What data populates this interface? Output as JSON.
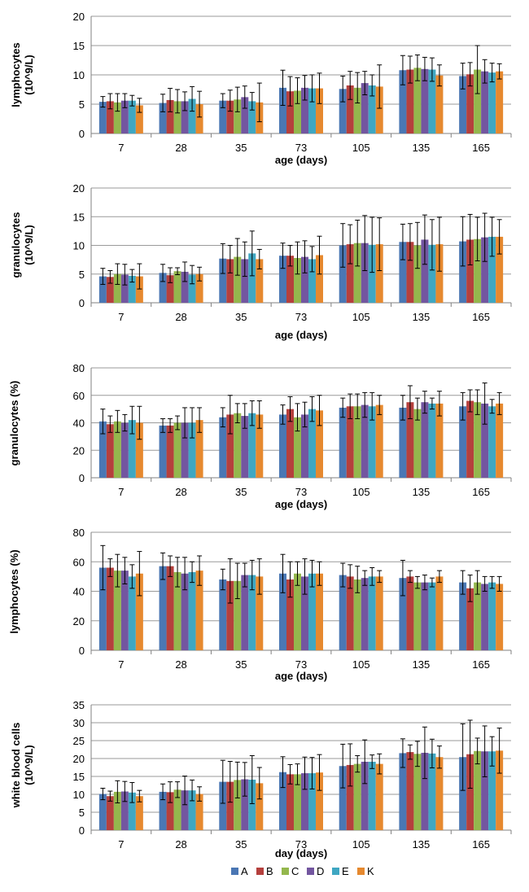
{
  "colors": {
    "A": "#4a77b4",
    "B": "#b5403d",
    "C": "#94b74d",
    "D": "#7356a0",
    "E": "#3fa7c2",
    "K": "#e6892f",
    "grid": "#9a9a9a",
    "axis": "#808080"
  },
  "legend": [
    "A",
    "B",
    "C",
    "D",
    "E",
    "K"
  ],
  "chart_data": [
    {
      "type": "bar",
      "ylabel": "lymphocytes (10^9/L)",
      "ylabel_lines": [
        "lymphocytes",
        "(10^9/L)"
      ],
      "xlabel": "age (days)",
      "ylim": [
        0,
        20
      ],
      "yticks": [
        0,
        5,
        10,
        15,
        20
      ],
      "categories": [
        "7",
        "28",
        "35",
        "73",
        "105",
        "135",
        "165"
      ],
      "series": [
        {
          "name": "A",
          "values": [
            5.4,
            5.2,
            5.6,
            7.8,
            7.6,
            10.8,
            9.8
          ],
          "errors": [
            0.9,
            1.5,
            1.2,
            3.0,
            2.2,
            2.5,
            2.2
          ]
        },
        {
          "name": "B",
          "values": [
            5.5,
            5.7,
            5.6,
            7.2,
            8.2,
            10.9,
            10.1
          ],
          "errors": [
            1.3,
            2.0,
            1.8,
            2.5,
            2.4,
            2.3,
            2.0
          ]
        },
        {
          "name": "C",
          "values": [
            5.3,
            5.5,
            5.8,
            7.3,
            7.8,
            11.2,
            10.9
          ],
          "errors": [
            1.5,
            2.0,
            2.1,
            2.2,
            2.6,
            2.2,
            4.1
          ]
        },
        {
          "name": "D",
          "values": [
            5.6,
            5.5,
            6.2,
            7.8,
            8.6,
            11.0,
            10.6
          ],
          "errors": [
            1.2,
            1.6,
            1.9,
            2.1,
            2.0,
            2.0,
            2.0
          ]
        },
        {
          "name": "E",
          "values": [
            5.6,
            5.9,
            5.5,
            7.7,
            8.2,
            10.9,
            10.4
          ],
          "errors": [
            0.9,
            2.1,
            1.5,
            2.3,
            1.8,
            2.0,
            1.6
          ]
        },
        {
          "name": "K",
          "values": [
            4.8,
            5.0,
            5.3,
            7.7,
            8.0,
            9.9,
            10.6
          ],
          "errors": [
            1.2,
            2.2,
            3.3,
            2.6,
            3.7,
            1.8,
            1.3
          ]
        }
      ]
    },
    {
      "type": "bar",
      "ylabel": "granulocytes (10^9/L)",
      "ylabel_lines": [
        "granulocytes",
        "(10^9/L)"
      ],
      "xlabel": "age (days)",
      "ylim": [
        0,
        20
      ],
      "yticks": [
        0,
        5,
        10,
        15,
        20
      ],
      "categories": [
        "7",
        "28",
        "35",
        "73",
        "105",
        "135",
        "165"
      ],
      "series": [
        {
          "name": "A",
          "values": [
            4.6,
            5.2,
            7.7,
            8.2,
            10.0,
            10.6,
            10.7
          ],
          "errors": [
            1.4,
            1.5,
            2.6,
            2.2,
            3.8,
            3.1,
            4.3
          ]
        },
        {
          "name": "B",
          "values": [
            4.5,
            4.8,
            7.6,
            8.2,
            10.2,
            10.6,
            11.0
          ],
          "errors": [
            1.1,
            1.3,
            2.4,
            1.8,
            3.4,
            3.2,
            4.4
          ]
        },
        {
          "name": "C",
          "values": [
            5.0,
            5.5,
            8.0,
            7.8,
            10.4,
            10.0,
            11.1
          ],
          "errors": [
            1.8,
            0.6,
            3.2,
            2.8,
            4.0,
            4.0,
            3.8
          ]
        },
        {
          "name": "D",
          "values": [
            4.9,
            5.4,
            7.6,
            8.0,
            10.4,
            11.0,
            11.4
          ],
          "errors": [
            1.8,
            1.7,
            3.0,
            2.8,
            4.8,
            4.3,
            4.2
          ]
        },
        {
          "name": "E",
          "values": [
            4.7,
            4.9,
            8.6,
            7.6,
            10.1,
            10.1,
            11.5
          ],
          "errors": [
            1.1,
            1.6,
            3.9,
            2.2,
            4.8,
            4.4,
            3.4
          ]
        },
        {
          "name": "K",
          "values": [
            4.6,
            5.0,
            7.6,
            8.3,
            10.2,
            10.2,
            11.5
          ],
          "errors": [
            2.2,
            1.2,
            1.7,
            3.3,
            4.6,
            4.7,
            3.0
          ]
        }
      ]
    },
    {
      "type": "bar",
      "ylabel": "granulocytes (%)",
      "ylabel_lines": [
        "granulocytes (%)"
      ],
      "xlabel": "age (days)",
      "ylim": [
        0,
        80
      ],
      "yticks": [
        0,
        20,
        40,
        60,
        80
      ],
      "categories": [
        "7",
        "28",
        "35",
        "73",
        "105",
        "135",
        "165"
      ],
      "series": [
        {
          "name": "A",
          "values": [
            41,
            38,
            44,
            46,
            51,
            51,
            52
          ],
          "errors": [
            9,
            5,
            7,
            7,
            7,
            9,
            10
          ]
        },
        {
          "name": "B",
          "values": [
            39,
            38,
            46,
            50,
            52,
            55,
            56
          ],
          "errors": [
            6,
            5,
            14,
            9,
            9,
            12,
            8
          ]
        },
        {
          "name": "C",
          "values": [
            41,
            40,
            47,
            44,
            52,
            50,
            55
          ],
          "errors": [
            8,
            5,
            7,
            10,
            9,
            8,
            9
          ]
        },
        {
          "name": "D",
          "values": [
            40,
            40,
            45,
            46,
            53,
            55,
            54
          ],
          "errors": [
            6,
            11,
            9,
            9,
            9,
            8,
            15
          ]
        },
        {
          "name": "E",
          "values": [
            42,
            40,
            47,
            50,
            52,
            54,
            52
          ],
          "errors": [
            10,
            11,
            9,
            9,
            10,
            4,
            5
          ]
        },
        {
          "name": "K",
          "values": [
            40,
            42,
            46,
            49,
            53,
            54,
            54
          ],
          "errors": [
            12,
            9,
            10,
            11,
            7,
            9,
            8
          ]
        }
      ]
    },
    {
      "type": "bar",
      "ylabel": "lymphocytes (%)",
      "ylabel_lines": [
        "lymphocytes (%)"
      ],
      "xlabel": "age (days)",
      "ylim": [
        0,
        80
      ],
      "yticks": [
        0,
        20,
        40,
        60,
        80
      ],
      "categories": [
        "7",
        "28",
        "35",
        "73",
        "105",
        "135",
        "165"
      ],
      "series": [
        {
          "name": "A",
          "values": [
            56,
            57,
            48,
            52,
            51,
            49,
            46
          ],
          "errors": [
            15,
            9,
            7,
            13,
            8,
            12,
            8
          ]
        },
        {
          "name": "B",
          "values": [
            56,
            57,
            47,
            48,
            50,
            50,
            42
          ],
          "errors": [
            6,
            7,
            15,
            12,
            8,
            4,
            9
          ]
        },
        {
          "name": "C",
          "values": [
            54,
            53,
            47,
            52,
            48,
            46,
            46
          ],
          "errors": [
            11,
            10,
            12,
            8,
            9,
            4,
            8
          ]
        },
        {
          "name": "D",
          "values": [
            54,
            52,
            51,
            50,
            49,
            46,
            45
          ],
          "errors": [
            9,
            11,
            8,
            12,
            5,
            5,
            5
          ]
        },
        {
          "name": "E",
          "values": [
            50,
            53,
            51,
            52,
            50,
            46,
            46
          ],
          "errors": [
            8,
            7,
            10,
            9,
            6,
            3,
            4
          ]
        },
        {
          "name": "K",
          "values": [
            52,
            54,
            50,
            52,
            50,
            50,
            45
          ],
          "errors": [
            15,
            10,
            12,
            8,
            4,
            4,
            5
          ]
        }
      ]
    },
    {
      "type": "bar",
      "ylabel": "white blood cells (10^9/L)",
      "ylabel_lines": [
        "white blood cells",
        "(10^9/L)"
      ],
      "xlabel": "day (days)",
      "ylim": [
        0,
        35
      ],
      "yticks": [
        0,
        5,
        10,
        15,
        20,
        25,
        30,
        35
      ],
      "categories": [
        "7",
        "28",
        "35",
        "73",
        "105",
        "135",
        "165"
      ],
      "series": [
        {
          "name": "A",
          "values": [
            10.1,
            10.7,
            13.5,
            16.2,
            17.9,
            21.5,
            20.4
          ],
          "errors": [
            1.6,
            2.2,
            6.0,
            4.3,
            6.1,
            4.0,
            9.3
          ]
        },
        {
          "name": "B",
          "values": [
            9.5,
            10.6,
            13.5,
            15.6,
            18.2,
            21.8,
            21.2
          ],
          "errors": [
            1.4,
            2.9,
            5.7,
            2.7,
            5.9,
            2.0,
            9.5
          ]
        },
        {
          "name": "C",
          "values": [
            10.7,
            11.3,
            14.0,
            15.6,
            18.5,
            21.3,
            22.1
          ],
          "errors": [
            3.1,
            2.2,
            5.0,
            2.9,
            2.3,
            3.5,
            3.6
          ]
        },
        {
          "name": "D",
          "values": [
            10.8,
            11.1,
            14.2,
            15.9,
            19.1,
            21.6,
            22.0
          ],
          "errors": [
            2.8,
            4.0,
            4.7,
            4.5,
            6.1,
            7.2,
            7.1
          ]
        },
        {
          "name": "E",
          "values": [
            10.5,
            11.1,
            14.1,
            15.9,
            19.1,
            21.4,
            22.0
          ],
          "errors": [
            2.8,
            2.9,
            6.7,
            4.4,
            1.9,
            4.0,
            4.1
          ]
        },
        {
          "name": "K",
          "values": [
            9.5,
            10.1,
            13.1,
            16.1,
            18.5,
            20.4,
            22.2
          ],
          "errors": [
            1.6,
            2.0,
            4.4,
            5.0,
            2.8,
            3.1,
            6.3
          ]
        }
      ]
    }
  ]
}
